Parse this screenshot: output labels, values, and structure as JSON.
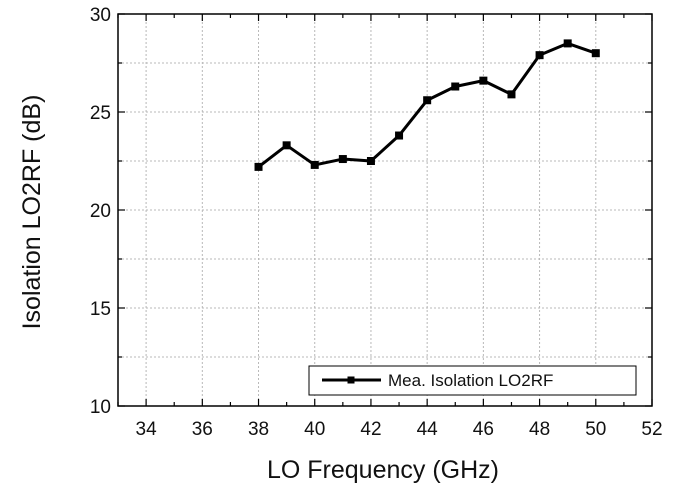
{
  "chart_data": {
    "type": "line",
    "xlabel": "LO Frequency (GHz)",
    "ylabel": "Isolation LO2RF (dB)",
    "xlim": [
      33,
      52
    ],
    "ylim": [
      10,
      30
    ],
    "x_ticks": [
      34,
      36,
      38,
      40,
      42,
      44,
      46,
      48,
      50,
      52
    ],
    "y_ticks": [
      10,
      15,
      20,
      25,
      30
    ],
    "grid": true,
    "legend_position": "bottom-right",
    "series": [
      {
        "name": "Mea. Isolation LO2RF",
        "marker": "square",
        "color": "#000000",
        "x": [
          38,
          39,
          40,
          41,
          42,
          43,
          44,
          45,
          46,
          47,
          48,
          49,
          50
        ],
        "y": [
          22.2,
          23.3,
          22.3,
          22.6,
          22.5,
          23.8,
          25.6,
          26.3,
          26.6,
          25.9,
          27.9,
          28.5,
          28.0
        ]
      }
    ]
  }
}
